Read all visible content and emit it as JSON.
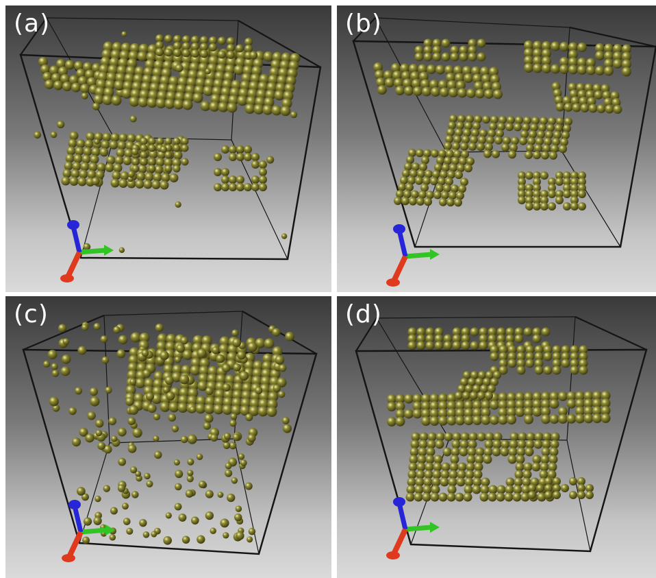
{
  "panels": [
    {
      "label": "(a)"
    },
    {
      "label": "(b)"
    },
    {
      "label": "(c)"
    },
    {
      "label": "(d)"
    }
  ],
  "colors": {
    "atom": "#8d8a34",
    "box_edge": "#151515",
    "axis_x": "#e03a1e",
    "axis_y": "#32c424",
    "axis_z": "#2626d8"
  },
  "icons": [
    "axis-triad-icon"
  ]
}
